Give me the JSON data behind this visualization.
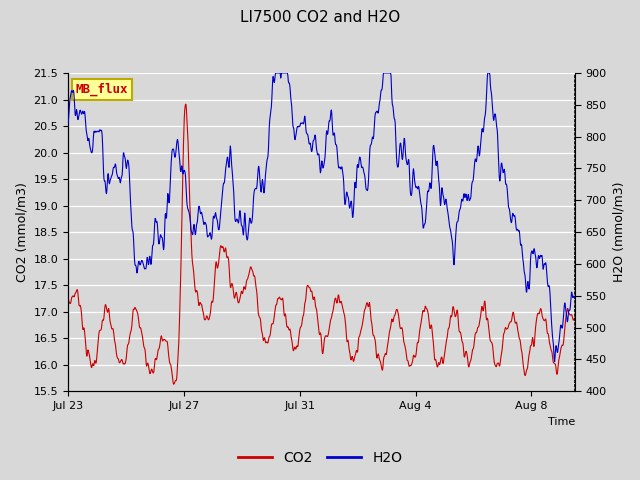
{
  "title": "LI7500 CO2 and H2O",
  "xlabel": "Time",
  "ylabel_left": "CO2 (mmol/m3)",
  "ylabel_right": "H2O (mmol/m3)",
  "co2_ylim": [
    15.5,
    21.5
  ],
  "h2o_ylim": [
    400,
    900
  ],
  "co2_color": "#cc0000",
  "h2o_color": "#0000cc",
  "bg_color": "#d8d8d8",
  "label_box_color": "#ffff99",
  "label_box_edge": "#bbaa00",
  "label_text": "MB_flux",
  "label_text_color": "#cc0000",
  "x_tick_labels": [
    "Jul 23",
    "Jul 27",
    "Jul 31",
    "Aug 4",
    "Aug 8"
  ],
  "x_tick_positions": [
    0,
    4,
    8,
    12,
    16
  ],
  "co2_yticks": [
    15.5,
    16.0,
    16.5,
    17.0,
    17.5,
    18.0,
    18.5,
    19.0,
    19.5,
    20.0,
    20.5,
    21.0,
    21.5
  ],
  "h2o_yticks": [
    400,
    450,
    500,
    550,
    600,
    650,
    700,
    750,
    800,
    850,
    900
  ],
  "total_days": 17.5,
  "figwidth": 6.4,
  "figheight": 4.8,
  "dpi": 100
}
